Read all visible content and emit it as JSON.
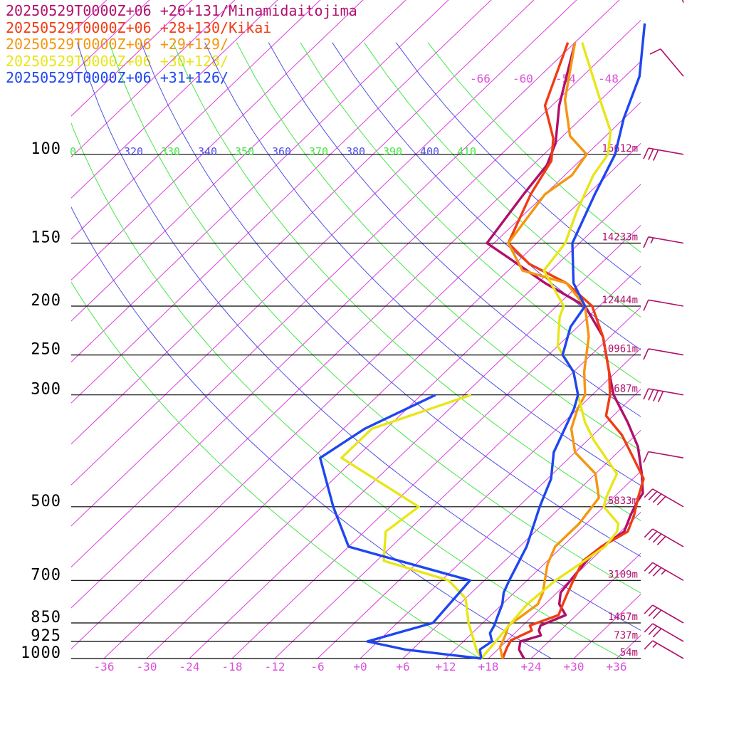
{
  "legend": [
    {
      "text": "20250529T0000Z+06 +26+131/Minamidaitojima",
      "color": "#b0106a"
    },
    {
      "text": "20250529T0000Z+06 +28+130/Kikai",
      "color": "#f03c14"
    },
    {
      "text": "20250529T0000Z+06 +29+129/",
      "color": "#f5960f"
    },
    {
      "text": "20250529T0000Z+06 +30+128/",
      "color": "#e8e619"
    },
    {
      "text": "20250529T0000Z+06 +31+126/",
      "color": "#1e46f0"
    }
  ],
  "colors": {
    "isotherm": "#dc3cdc",
    "theta_blue": "#5050e6",
    "theta_green": "#46e646",
    "height": "#b0106a",
    "temp_tick": "#dc50dc",
    "barb": "#b0106a"
  },
  "chart_data": {
    "type": "line",
    "title": "",
    "xlabel": "",
    "ylabel": "",
    "scale": "skew-T log-p",
    "pressure_levels": [
      100,
      150,
      200,
      250,
      300,
      500,
      700,
      850,
      925,
      1000
    ],
    "pressure_labels": [
      "100",
      "150",
      "200",
      "250",
      "300",
      "500",
      "700",
      "850",
      "925",
      "1000"
    ],
    "height_labels": [
      {
        "p": 100,
        "text": "16612m"
      },
      {
        "p": 150,
        "text": "14233m"
      },
      {
        "p": 200,
        "text": "12444m"
      },
      {
        "p": 250,
        "text": "10961m"
      },
      {
        "p": 300,
        "text": "9687m"
      },
      {
        "p": 500,
        "text": "5833m"
      },
      {
        "p": 700,
        "text": "3109m"
      },
      {
        "p": 850,
        "text": "1467m"
      },
      {
        "p": 925,
        "text": "737m"
      },
      {
        "p": 1000,
        "text": "54m"
      }
    ],
    "temperature_ticks": [
      "-36",
      "-30",
      "-24",
      "-18",
      "-12",
      "-6",
      "+0",
      "+6",
      "+12",
      "+18",
      "+24",
      "+30",
      "+36"
    ],
    "theta_labels": [
      {
        "text": "0",
        "kind": "green"
      },
      {
        "text": "320",
        "kind": "blue"
      },
      {
        "text": "330",
        "kind": "green"
      },
      {
        "text": "340",
        "kind": "blue"
      },
      {
        "text": "350",
        "kind": "green"
      },
      {
        "text": "360",
        "kind": "blue"
      },
      {
        "text": "370",
        "kind": "green"
      },
      {
        "text": "380",
        "kind": "blue"
      },
      {
        "text": "390",
        "kind": "green"
      },
      {
        "text": "400",
        "kind": "blue"
      },
      {
        "text": "410",
        "kind": "green"
      }
    ],
    "upper_isotherm_labels": [
      "-66",
      "-60",
      "-54",
      "-48"
    ],
    "series": [
      {
        "name": "20250529T0000Z+06 +26+131/Minamidaitojima",
        "color": "#b0106a",
        "values": [
          [
            1000,
            23
          ],
          [
            960,
            21
          ],
          [
            925,
            20
          ],
          [
            900,
            22
          ],
          [
            880,
            21
          ],
          [
            860,
            20.5
          ],
          [
            820,
            22.5
          ],
          [
            780,
            20
          ],
          [
            740,
            18.5
          ],
          [
            690,
            18
          ],
          [
            640,
            17.5
          ],
          [
            600,
            17.5
          ],
          [
            560,
            18.5
          ],
          [
            520,
            17
          ],
          [
            490,
            16
          ],
          [
            470,
            15.5
          ],
          [
            430,
            12.5
          ],
          [
            380,
            8
          ],
          [
            340,
            3
          ],
          [
            300,
            -3
          ],
          [
            270,
            -7
          ],
          [
            230,
            -13
          ],
          [
            200,
            -20
          ],
          [
            180,
            -29
          ],
          [
            160,
            -38
          ],
          [
            150,
            -43
          ],
          [
            120,
            -45
          ],
          [
            105,
            -46
          ],
          [
            95,
            -48
          ],
          [
            80,
            -53
          ],
          [
            60,
            -60
          ]
        ]
      },
      {
        "name": "20250529T0000Z+06 +28+130/Kikai",
        "color": "#f03c14",
        "values": [
          [
            1000,
            20
          ],
          [
            950,
            19
          ],
          [
            920,
            18.5
          ],
          [
            880,
            20
          ],
          [
            860,
            19
          ],
          [
            820,
            21.5
          ],
          [
            780,
            20.5
          ],
          [
            740,
            19.5
          ],
          [
            700,
            18.5
          ],
          [
            640,
            17
          ],
          [
            600,
            17.5
          ],
          [
            560,
            19
          ],
          [
            520,
            17.5
          ],
          [
            480,
            15.5
          ],
          [
            440,
            13.5
          ],
          [
            400,
            9
          ],
          [
            360,
            4
          ],
          [
            330,
            -1
          ],
          [
            300,
            -3.5
          ],
          [
            270,
            -7
          ],
          [
            230,
            -13
          ],
          [
            200,
            -19
          ],
          [
            180,
            -26
          ],
          [
            165,
            -34
          ],
          [
            150,
            -40
          ],
          [
            120,
            -44
          ],
          [
            103,
            -46
          ],
          [
            93,
            -49
          ],
          [
            80,
            -55
          ],
          [
            60,
            -61
          ]
        ]
      },
      {
        "name": "20250529T0000Z+06 +29+129/",
        "color": "#f5960f",
        "values": [
          [
            1000,
            20
          ],
          [
            950,
            18
          ],
          [
            900,
            17
          ],
          [
            860,
            16
          ],
          [
            820,
            16.5
          ],
          [
            780,
            17
          ],
          [
            740,
            16
          ],
          [
            700,
            14.5
          ],
          [
            650,
            12.5
          ],
          [
            600,
            11
          ],
          [
            540,
            11
          ],
          [
            480,
            10
          ],
          [
            430,
            6
          ],
          [
            390,
            0
          ],
          [
            350,
            -4
          ],
          [
            320,
            -6
          ],
          [
            300,
            -7
          ],
          [
            270,
            -10.5
          ],
          [
            230,
            -15
          ],
          [
            200,
            -20
          ],
          [
            180,
            -26
          ],
          [
            170,
            -34
          ],
          [
            150,
            -40
          ],
          [
            120,
            -42
          ],
          [
            110,
            -41
          ],
          [
            100,
            -42
          ],
          [
            92,
            -47
          ],
          [
            78,
            -53
          ],
          [
            60,
            -60
          ]
        ]
      },
      {
        "name": "20250529T0000Z+06 +30+128/",
        "color": "#e8e619",
        "values": [
          [
            1000,
            17
          ],
          [
            920,
            16.5
          ],
          [
            850,
            16
          ],
          [
            780,
            15.5
          ],
          [
            700,
            16
          ],
          [
            650,
            17
          ],
          [
            600,
            18
          ],
          [
            560,
            17.5
          ],
          [
            540,
            16.5
          ],
          [
            500,
            12
          ],
          [
            480,
            11
          ],
          [
            430,
            9
          ],
          [
            370,
            1
          ],
          [
            340,
            -3
          ],
          [
            300,
            -8
          ],
          [
            270,
            -12
          ],
          [
            240,
            -18
          ],
          [
            210,
            -22
          ],
          [
            200,
            -23
          ],
          [
            170,
            -31
          ],
          [
            150,
            -32
          ],
          [
            130,
            -35
          ],
          [
            110,
            -38
          ],
          [
            100,
            -39
          ],
          [
            90,
            -42
          ],
          [
            80,
            -47
          ],
          [
            60,
            -59
          ]
        ]
      },
      {
        "name": "20250529T0000Z+06 +31+126/",
        "color": "#1e46f0",
        "values": [
          [
            1000,
            17
          ],
          [
            960,
            15.5
          ],
          [
            925,
            16
          ],
          [
            890,
            14.5
          ],
          [
            860,
            14
          ],
          [
            820,
            13
          ],
          [
            780,
            12
          ],
          [
            740,
            10.5
          ],
          [
            700,
            9.5
          ],
          [
            600,
            7
          ],
          [
            500,
            3
          ],
          [
            440,
            0.5
          ],
          [
            390,
            -3
          ],
          [
            320,
            -6.5
          ],
          [
            300,
            -8
          ],
          [
            270,
            -12
          ],
          [
            250,
            -16
          ],
          [
            220,
            -19
          ],
          [
            200,
            -20
          ],
          [
            180,
            -25
          ],
          [
            150,
            -31
          ],
          [
            120,
            -35
          ],
          [
            100,
            -38
          ],
          [
            85,
            -42
          ],
          [
            70,
            -46
          ],
          [
            55,
            -53
          ]
        ]
      }
    ],
    "dewpoint_series": [
      {
        "name": "20250529T0000Z+06 +30+128/",
        "color": "#e8e619",
        "values": [
          [
            1000,
            17
          ],
          [
            960,
            15
          ],
          [
            925,
            13.5
          ],
          [
            850,
            10
          ],
          [
            760,
            6
          ],
          [
            700,
            1
          ],
          [
            640,
            -11
          ],
          [
            560,
            -15
          ],
          [
            500,
            -14
          ],
          [
            400,
            -32
          ],
          [
            350,
            -32
          ],
          [
            300,
            -23
          ]
        ]
      },
      {
        "name": "20250529T0000Z+06 +31+126/",
        "color": "#1e46f0",
        "values": [
          [
            1000,
            17
          ],
          [
            960,
            5
          ],
          [
            925,
            -1.5
          ],
          [
            850,
            5
          ],
          [
            700,
            4
          ],
          [
            600,
            -18
          ],
          [
            500,
            -26
          ],
          [
            400,
            -35
          ],
          [
            350,
            -33
          ],
          [
            300,
            -28
          ]
        ]
      }
    ],
    "wind_barbs": [
      {
        "p": 1000,
        "pennants": 0,
        "full": 1,
        "half": 1,
        "dir": "SW"
      },
      {
        "p": 925,
        "pennants": 0,
        "full": 3,
        "half": 0,
        "dir": "SW"
      },
      {
        "p": 850,
        "pennants": 0,
        "full": 3,
        "half": 0,
        "dir": "SW"
      },
      {
        "p": 700,
        "pennants": 0,
        "full": 3,
        "half": 1,
        "dir": "SW"
      },
      {
        "p": 600,
        "pennants": 0,
        "full": 4,
        "half": 0,
        "dir": "SW"
      },
      {
        "p": 500,
        "pennants": 0,
        "full": 4,
        "half": 0,
        "dir": "SW"
      },
      {
        "p": 400,
        "pennants": 0,
        "full": 1,
        "half": 0,
        "dir": "W"
      },
      {
        "p": 300,
        "pennants": 0,
        "full": 4,
        "half": 0,
        "dir": "W"
      },
      {
        "p": 250,
        "pennants": 0,
        "full": 1,
        "half": 0,
        "dir": "W"
      },
      {
        "p": 200,
        "pennants": 0,
        "full": 1,
        "half": 0,
        "dir": "W"
      },
      {
        "p": 150,
        "pennants": 0,
        "full": 1,
        "half": 1,
        "dir": "W"
      },
      {
        "p": 100,
        "pennants": 0,
        "full": 3,
        "half": 0,
        "dir": "W"
      },
      {
        "p": 70,
        "pennants": 0,
        "full": 1,
        "half": 0,
        "dir": "NW"
      },
      {
        "p": 50,
        "pennants": 0,
        "full": 1,
        "half": 0,
        "dir": "N"
      }
    ]
  }
}
